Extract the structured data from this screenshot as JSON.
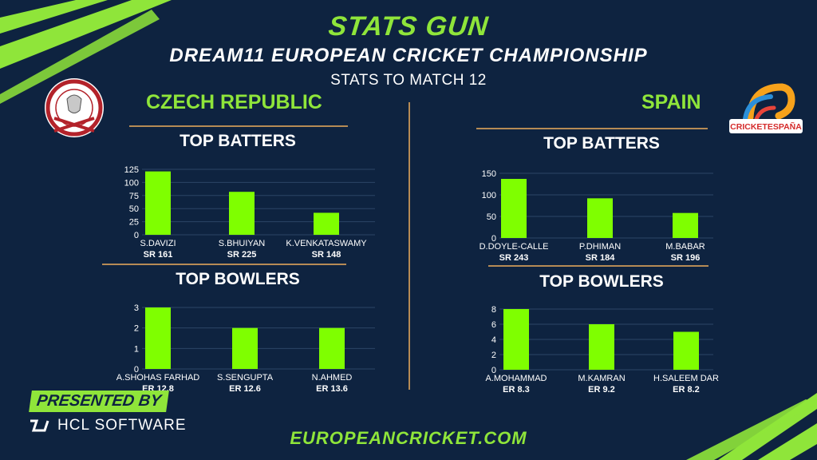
{
  "header": {
    "brand": "STATS GUN",
    "title": "DREAM11 EUROPEAN CRICKET CHAMPIONSHIP",
    "subtitle": "STATS TO MATCH 12"
  },
  "teams": {
    "left": {
      "name": "CZECH REPUBLIC"
    },
    "right": {
      "name": "SPAIN",
      "logo_text": "CRICKETESPAÑA"
    }
  },
  "colors": {
    "background": "#0e2340",
    "accent": "#8fe53a",
    "bar": "#7fff00",
    "rule": "#b68b55"
  },
  "footer": {
    "presented_by": "PRESENTED BY",
    "sponsor": "HCL SOFTWARE",
    "website": "EUROPEANCRICKET.COM"
  },
  "chart_data": [
    {
      "type": "bar",
      "team": "CZECH REPUBLIC",
      "title": "TOP BATTERS",
      "categories": [
        "S.DAVIZI",
        "S.BHUIYAN",
        "K.VENKATASWAMY"
      ],
      "values": [
        121,
        82,
        42
      ],
      "sublabels": [
        "SR 161",
        "SR 225",
        "SR 148"
      ],
      "yticks": [
        0,
        25,
        50,
        75,
        100,
        125
      ],
      "ylim": [
        0,
        125
      ]
    },
    {
      "type": "bar",
      "team": "CZECH REPUBLIC",
      "title": "TOP BOWLERS",
      "categories": [
        "A.SHOHAS FARHAD",
        "S.SENGUPTA",
        "N.AHMED"
      ],
      "values": [
        3,
        2,
        2
      ],
      "sublabels": [
        "ER 12.8",
        "ER 12.6",
        "ER 13.6"
      ],
      "yticks": [
        0,
        1,
        2,
        3
      ],
      "ylim": [
        0,
        3
      ]
    },
    {
      "type": "bar",
      "team": "SPAIN",
      "title": "TOP BATTERS",
      "categories": [
        "D.DOYLE-CALLE",
        "P.DHIMAN",
        "M.BABAR"
      ],
      "values": [
        137,
        92,
        58
      ],
      "sublabels": [
        "SR 243",
        "SR 184",
        "SR 196"
      ],
      "yticks": [
        0,
        50,
        100,
        150
      ],
      "ylim": [
        0,
        150
      ]
    },
    {
      "type": "bar",
      "team": "SPAIN",
      "title": "TOP BOWLERS",
      "categories": [
        "A.MOHAMMAD",
        "M.KAMRAN",
        "H.SALEEM DAR"
      ],
      "values": [
        8,
        6,
        5
      ],
      "sublabels": [
        "ER 8.3",
        "ER 9.2",
        "ER 8.2"
      ],
      "yticks": [
        0,
        2,
        4,
        6,
        8
      ],
      "ylim": [
        0,
        8
      ]
    }
  ]
}
